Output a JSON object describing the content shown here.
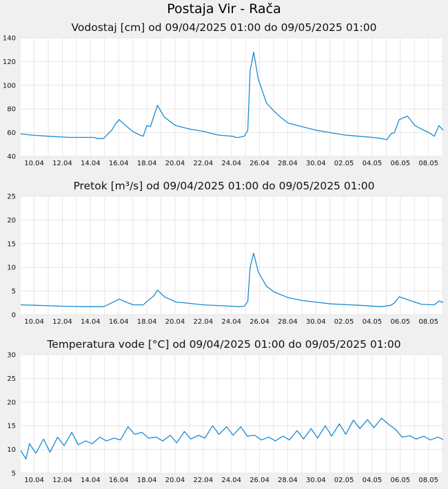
{
  "page": {
    "title": "Postaja Vir - Rača"
  },
  "chart_data": [
    {
      "type": "line",
      "title": "Vodostaj [cm] od 09/04/2025 01:00 do 09/05/2025 01:00",
      "x_range": [
        "2025-04-09 01:00",
        "2025-05-09 01:00"
      ],
      "ylim": [
        40,
        140
      ],
      "yticks": [
        40,
        60,
        80,
        100,
        120,
        140
      ],
      "xticks": [
        "10.04",
        "12.04",
        "14.04",
        "16.04",
        "18.04",
        "20.04",
        "22.04",
        "24.04",
        "26.04",
        "28.04",
        "30.04",
        "02.05",
        "04.05",
        "06.05",
        "08.05"
      ],
      "grid": true,
      "color": "#1a8bd0",
      "series": [
        {
          "x": [
            "2025-04-09 01:00",
            "2025-04-09 18:00",
            "2025-04-11 00:00",
            "2025-04-12 12:00",
            "2025-04-13 12:00",
            "2025-04-14 06:00",
            "2025-04-14 12:00",
            "2025-04-14 22:00",
            "2025-04-15 12:00",
            "2025-04-15 18:00",
            "2025-04-16 01:00",
            "2025-04-16 12:00",
            "2025-04-17 00:00",
            "2025-04-17 12:00",
            "2025-04-17 18:00",
            "2025-04-18 00:00",
            "2025-04-18 06:00",
            "2025-04-18 12:00",
            "2025-04-18 18:00",
            "2025-04-19 06:00",
            "2025-04-20 01:00",
            "2025-04-21 01:00",
            "2025-04-22 01:00",
            "2025-04-23 01:00",
            "2025-04-24 01:00",
            "2025-04-24 03:00",
            "2025-04-24 07:00",
            "2025-04-24 12:00",
            "2025-04-24 22:00",
            "2025-04-25 04:00",
            "2025-04-25 08:00",
            "2025-04-25 14:00",
            "2025-04-25 22:00",
            "2025-04-26 12:00",
            "2025-04-27 01:00",
            "2025-04-27 12:00",
            "2025-04-28 01:00",
            "2025-04-29 01:00",
            "2025-04-30 01:00",
            "2025-05-01 01:00",
            "2025-05-02 01:00",
            "2025-05-03 01:00",
            "2025-05-04 01:00",
            "2025-05-04 16:00",
            "2025-05-05 01:00",
            "2025-05-05 08:00",
            "2025-05-05 14:00",
            "2025-05-05 22:00",
            "2025-05-06 12:00",
            "2025-05-07 01:00",
            "2025-05-07 12:00",
            "2025-05-08 01:00",
            "2025-05-08 10:00",
            "2025-05-08 18:00",
            "2025-05-09 01:00"
          ],
          "y": [
            59,
            58,
            57,
            56,
            56,
            56,
            55,
            55,
            62,
            67,
            71,
            66,
            61,
            58,
            57,
            66,
            65,
            74,
            83,
            73,
            66,
            63,
            61,
            58,
            57,
            57,
            56,
            56,
            57,
            62,
            112,
            128,
            105,
            85,
            78,
            73,
            68,
            65,
            62,
            60,
            58,
            57,
            56,
            55,
            54,
            59,
            60,
            71,
            74,
            66,
            63,
            60,
            57,
            66,
            62
          ]
        }
      ]
    },
    {
      "type": "line",
      "title": "Pretok [m³/s] od 09/04/2025 01:00 do 09/05/2025 01:00",
      "x_range": [
        "2025-04-09 01:00",
        "2025-05-09 01:00"
      ],
      "ylim": [
        0,
        25
      ],
      "yticks": [
        0,
        5,
        10,
        15,
        20,
        25
      ],
      "xticks": [
        "10.04",
        "12.04",
        "14.04",
        "16.04",
        "18.04",
        "20.04",
        "22.04",
        "24.04",
        "26.04",
        "28.04",
        "30.04",
        "02.05",
        "04.05",
        "06.05",
        "08.05"
      ],
      "grid": true,
      "color": "#1a8bd0",
      "series": [
        {
          "x": [
            "2025-04-09 01:00",
            "2025-04-10 01:00",
            "2025-04-12 01:00",
            "2025-04-13 12:00",
            "2025-04-14 12:00",
            "2025-04-14 22:00",
            "2025-04-15 12:00",
            "2025-04-16 01:00",
            "2025-04-16 12:00",
            "2025-04-17 01:00",
            "2025-04-17 18:00",
            "2025-04-18 00:00",
            "2025-04-18 12:00",
            "2025-04-18 18:00",
            "2025-04-19 06:00",
            "2025-04-20 01:00",
            "2025-04-22 01:00",
            "2025-04-24 01:00",
            "2025-04-24 12:00",
            "2025-04-24 22:00",
            "2025-04-25 04:00",
            "2025-04-25 08:00",
            "2025-04-25 14:00",
            "2025-04-25 22:00",
            "2025-04-26 12:00",
            "2025-04-27 01:00",
            "2025-04-28 01:00",
            "2025-04-29 01:00",
            "2025-05-01 01:00",
            "2025-05-03 01:00",
            "2025-05-04 16:00",
            "2025-05-05 08:00",
            "2025-05-05 14:00",
            "2025-05-05 22:00",
            "2025-05-06 12:00",
            "2025-05-07 12:00",
            "2025-05-08 10:00",
            "2025-05-08 18:00",
            "2025-05-09 01:00"
          ],
          "y": [
            2.1,
            2.0,
            1.8,
            1.7,
            1.7,
            1.7,
            2.5,
            3.3,
            2.7,
            2.1,
            2.1,
            2.8,
            4.0,
            5.2,
            3.8,
            2.7,
            2.1,
            1.8,
            1.7,
            1.8,
            2.8,
            10.0,
            13.0,
            9.0,
            6.0,
            4.8,
            3.6,
            3.0,
            2.3,
            2.0,
            1.7,
            2.0,
            2.5,
            3.8,
            3.2,
            2.2,
            2.1,
            2.9,
            2.6
          ]
        }
      ]
    },
    {
      "type": "line",
      "title": "Temperatura vode [°C] od 09/04/2025 01:00 do 09/05/2025 01:00",
      "x_range": [
        "2025-04-09 01:00",
        "2025-05-09 01:00"
      ],
      "ylim": [
        5,
        30
      ],
      "yticks": [
        5,
        10,
        15,
        20,
        25,
        30
      ],
      "xticks": [
        "10.04",
        "12.04",
        "14.04",
        "16.04",
        "18.04",
        "20.04",
        "22.04",
        "24.04",
        "26.04",
        "28.04",
        "30.04",
        "02.05",
        "04.05",
        "06.05",
        "08.05"
      ],
      "grid": true,
      "color": "#1a8bd0",
      "series": [
        {
          "x": [
            "2025-04-09 01:00",
            "2025-04-09 10:00",
            "2025-04-09 16:00",
            "2025-04-10 03:00",
            "2025-04-10 16:00",
            "2025-04-11 03:00",
            "2025-04-11 16:00",
            "2025-04-12 03:00",
            "2025-04-12 16:00",
            "2025-04-13 03:00",
            "2025-04-13 16:00",
            "2025-04-14 03:00",
            "2025-04-14 16:00",
            "2025-04-15 03:00",
            "2025-04-15 16:00",
            "2025-04-16 03:00",
            "2025-04-16 16:00",
            "2025-04-17 03:00",
            "2025-04-17 16:00",
            "2025-04-18 03:00",
            "2025-04-18 16:00",
            "2025-04-19 03:00",
            "2025-04-19 16:00",
            "2025-04-20 03:00",
            "2025-04-20 16:00",
            "2025-04-21 03:00",
            "2025-04-21 16:00",
            "2025-04-22 03:00",
            "2025-04-22 16:00",
            "2025-04-23 03:00",
            "2025-04-23 16:00",
            "2025-04-24 03:00",
            "2025-04-24 16:00",
            "2025-04-25 03:00",
            "2025-04-25 16:00",
            "2025-04-26 03:00",
            "2025-04-26 16:00",
            "2025-04-27 03:00",
            "2025-04-27 16:00",
            "2025-04-28 03:00",
            "2025-04-28 16:00",
            "2025-04-29 03:00",
            "2025-04-29 16:00",
            "2025-04-30 03:00",
            "2025-04-30 16:00",
            "2025-05-01 03:00",
            "2025-05-01 16:00",
            "2025-05-02 03:00",
            "2025-05-02 16:00",
            "2025-05-03 03:00",
            "2025-05-03 16:00",
            "2025-05-04 03:00",
            "2025-05-04 16:00",
            "2025-05-05 03:00",
            "2025-05-05 16:00",
            "2025-05-06 03:00",
            "2025-05-06 16:00",
            "2025-05-07 03:00",
            "2025-05-07 16:00",
            "2025-05-08 03:00",
            "2025-05-08 16:00",
            "2025-05-09 01:00"
          ],
          "y": [
            9.8,
            8.0,
            11.2,
            9.2,
            12.2,
            9.4,
            12.6,
            10.8,
            13.6,
            11.0,
            11.8,
            11.2,
            12.6,
            11.8,
            12.4,
            12.0,
            14.8,
            13.2,
            13.6,
            12.4,
            12.6,
            11.8,
            13.0,
            11.4,
            13.8,
            12.2,
            13.0,
            12.4,
            15.0,
            13.2,
            14.8,
            13.0,
            14.8,
            12.8,
            13.0,
            12.0,
            12.6,
            11.8,
            12.8,
            12.0,
            14.0,
            12.2,
            14.4,
            12.4,
            15.0,
            12.8,
            15.4,
            13.2,
            16.2,
            14.4,
            16.3,
            14.6,
            16.6,
            15.4,
            14.2,
            12.6,
            12.9,
            12.2,
            12.8,
            12.0,
            12.6,
            12.1
          ]
        }
      ]
    }
  ]
}
